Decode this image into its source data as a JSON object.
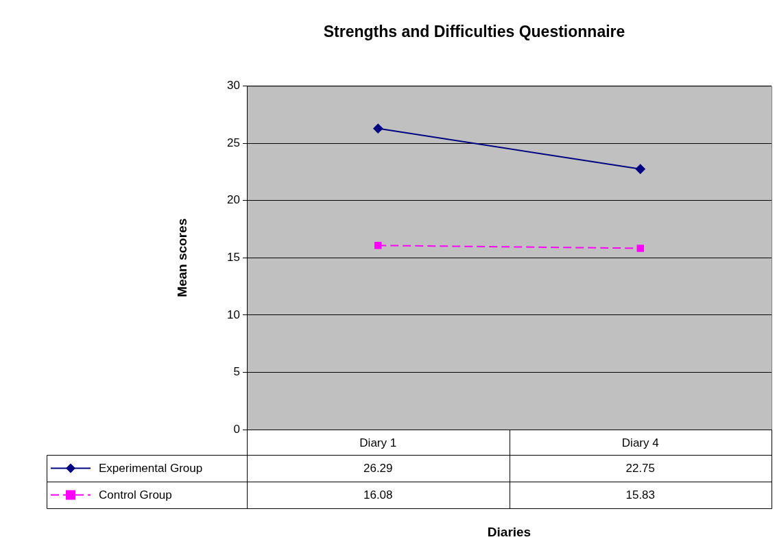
{
  "chart_data": {
    "type": "line",
    "title": "Strengths and Difficulties Questionnaire",
    "annotations": [
      "Diaries"
    ],
    "ylabel": "Mean scores",
    "categories": [
      "Diary 1",
      "Diary 4"
    ],
    "series": [
      {
        "name": "Experimental Group",
        "color": "#000080",
        "values": [
          26.29,
          22.75
        ],
        "marker": "diamond",
        "line_style": "solid"
      },
      {
        "name": "Control Group",
        "color": "#ff00ff",
        "values": [
          16.08,
          15.83
        ],
        "marker": "square",
        "line_style": "dashed"
      }
    ],
    "ylim": [
      0,
      30
    ],
    "yticks": [
      0,
      5,
      10,
      15,
      20,
      25,
      30
    ],
    "grid": "y",
    "legend": "bottom",
    "data_labels": true
  }
}
